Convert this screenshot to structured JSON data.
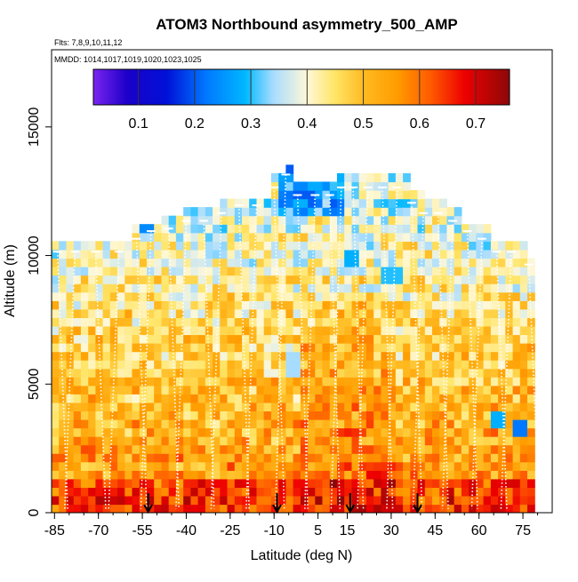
{
  "chart_data": {
    "type": "heatmap",
    "title": "ATOM3 Northbound asymmetry_500_AMP",
    "subtitle_flights": "Flts: 7,8,9,10,11,12",
    "subtitle_dates": "MMDD: 1014,1017,1019,1020,1023,1025",
    "xlabel": "Latitude (deg N)",
    "ylabel": "Altitude (m)",
    "xlim": [
      -86,
      85
    ],
    "ylim": [
      0,
      18000
    ],
    "x_ticks": [
      -85,
      -70,
      -55,
      -40,
      -25,
      -10,
      5,
      15,
      30,
      45,
      60,
      75
    ],
    "x_tick_labels": [
      "-85",
      "-70",
      "-55",
      "-40",
      "-25",
      "-10",
      "5",
      "15",
      "30",
      "45",
      "60",
      "75"
    ],
    "y_ticks": [
      0,
      5000,
      10000,
      15000
    ],
    "y_tick_labels": [
      "0",
      "5000",
      "10000",
      "15000"
    ],
    "colorbar": {
      "range": [
        0.02,
        0.76
      ],
      "ticks": [
        0.1,
        0.2,
        0.3,
        0.4,
        0.5,
        0.6,
        0.7
      ],
      "tick_labels": [
        "0.1",
        "0.2",
        "0.3",
        "0.4",
        "0.5",
        "0.6",
        "0.7"
      ],
      "stops": [
        {
          "value": 0.02,
          "color": "#7b24f0"
        },
        {
          "value": 0.08,
          "color": "#1c00c8"
        },
        {
          "value": 0.15,
          "color": "#0010d8"
        },
        {
          "value": 0.22,
          "color": "#0078ff"
        },
        {
          "value": 0.29,
          "color": "#00b8ff"
        },
        {
          "value": 0.34,
          "color": "#a8dcff"
        },
        {
          "value": 0.4,
          "color": "#fff8d8"
        },
        {
          "value": 0.45,
          "color": "#ffe566"
        },
        {
          "value": 0.5,
          "color": "#ffbb22"
        },
        {
          "value": 0.56,
          "color": "#ff9c00"
        },
        {
          "value": 0.62,
          "color": "#ff5a00"
        },
        {
          "value": 0.68,
          "color": "#ee0000"
        },
        {
          "value": 0.76,
          "color": "#8c0808"
        }
      ]
    },
    "profile_latitudes": [
      -84,
      -78,
      -71,
      -63,
      -57,
      -52,
      -46,
      -40,
      -34,
      -28,
      -22,
      -16,
      -10,
      -6,
      -2,
      4,
      9,
      13,
      17,
      22,
      27,
      32,
      37,
      41,
      46,
      51,
      56,
      61,
      66,
      71,
      77
    ],
    "profile_tops_m": [
      10400,
      10400,
      10400,
      10400,
      10900,
      11200,
      11300,
      11600,
      11600,
      11900,
      12200,
      12200,
      12900,
      13400,
      12600,
      12600,
      12600,
      12900,
      12900,
      12900,
      12900,
      12900,
      12300,
      11900,
      11900,
      11600,
      11200,
      10900,
      10400,
      10400,
      9900
    ],
    "descent_markers_lat": [
      -53,
      -9,
      16,
      39
    ],
    "low_value_cells": [
      {
        "lat": -54,
        "alt_m": 11000,
        "value": 0.24
      },
      {
        "lat": 15,
        "alt_m": 9600,
        "value": 0.28
      },
      {
        "lat": 29,
        "alt_m": 9100,
        "value": 0.3
      },
      {
        "lat": -5,
        "alt_m": 5600,
        "value": 0.34
      },
      {
        "lat": 66,
        "alt_m": 3600,
        "value": 0.28
      },
      {
        "lat": 73,
        "alt_m": 3100,
        "value": 0.22
      }
    ]
  },
  "colors": {
    "axis": "#000000",
    "profile_line": "#ffffff",
    "background": "#ffffff"
  }
}
